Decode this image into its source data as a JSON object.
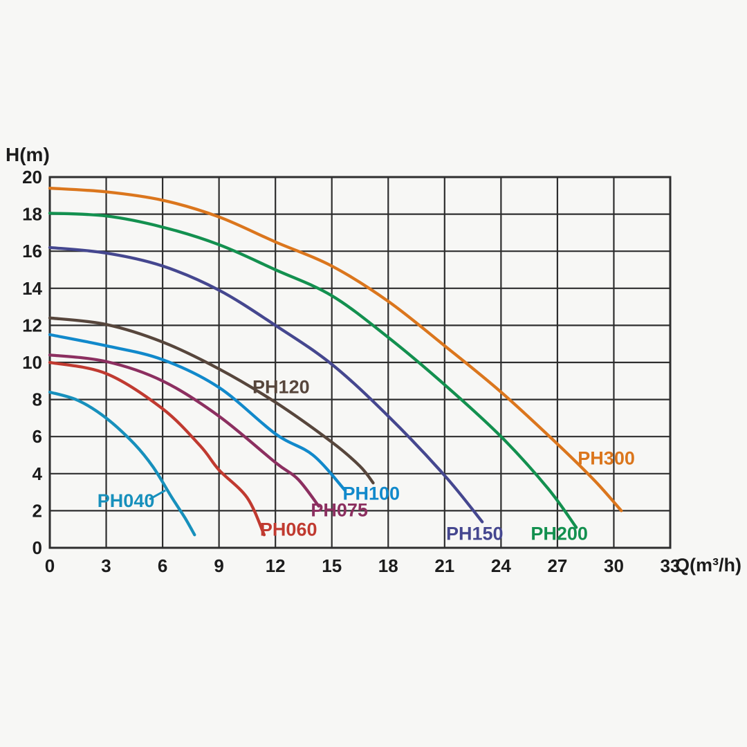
{
  "page": {
    "background": "#f7f7f5",
    "text_color": "#1c1c1c"
  },
  "chart_data": {
    "type": "line",
    "title": "",
    "xlabel": "Q(m³/h)",
    "ylabel": "H(m)",
    "xlim": [
      0,
      33
    ],
    "ylim": [
      0,
      20
    ],
    "x_ticks": [
      0,
      3,
      6,
      9,
      12,
      15,
      18,
      21,
      24,
      27,
      30,
      33
    ],
    "y_ticks": [
      0,
      2,
      4,
      6,
      8,
      10,
      12,
      14,
      16,
      18,
      20
    ],
    "grid": true,
    "grid_color": "#2e2e2e",
    "axis_color": "#2e2e2e",
    "tick_label_color": "#1c1c1c",
    "legend_position": "inline-labels",
    "series": [
      {
        "name": "PH040",
        "color": "#1790bc",
        "points": [
          [
            0,
            8.4
          ],
          [
            1.5,
            7.95
          ],
          [
            3,
            7.0
          ],
          [
            4.5,
            5.6
          ],
          [
            5.5,
            4.35
          ],
          [
            6.5,
            2.7
          ],
          [
            7.2,
            1.6
          ],
          [
            7.7,
            0.7
          ]
        ],
        "label": {
          "x": 4.05,
          "y": 2.55
        },
        "leader": {
          "x1": 5.3,
          "y1": 2.62,
          "x2": 6.15,
          "y2": 3.1
        }
      },
      {
        "name": "PH060",
        "color": "#c03a30",
        "points": [
          [
            0,
            10.0
          ],
          [
            3,
            9.4
          ],
          [
            6,
            7.5
          ],
          [
            8,
            5.5
          ],
          [
            9,
            4.2
          ],
          [
            10.5,
            2.7
          ],
          [
            11.4,
            0.7
          ]
        ],
        "label": {
          "x": 12.7,
          "y": 1.0
        }
      },
      {
        "name": "PH075",
        "color": "#8c2f60",
        "points": [
          [
            0,
            10.4
          ],
          [
            3,
            10.05
          ],
          [
            6,
            9.0
          ],
          [
            9,
            7.1
          ],
          [
            12,
            4.6
          ],
          [
            13.2,
            3.7
          ],
          [
            14.3,
            2.25
          ]
        ],
        "label": {
          "x": 15.4,
          "y": 2.05
        }
      },
      {
        "name": "PH100",
        "color": "#1189cb",
        "points": [
          [
            0,
            11.5
          ],
          [
            3,
            10.9
          ],
          [
            6,
            10.15
          ],
          [
            9,
            8.65
          ],
          [
            12,
            6.15
          ],
          [
            14,
            5.0
          ],
          [
            15.7,
            3.1
          ]
        ],
        "label": {
          "x": 17.1,
          "y": 2.95
        }
      },
      {
        "name": "PH120",
        "color": "#57463c",
        "points": [
          [
            0,
            12.4
          ],
          [
            3,
            12.05
          ],
          [
            6,
            11.1
          ],
          [
            9,
            9.65
          ],
          [
            12,
            7.85
          ],
          [
            15,
            5.7
          ],
          [
            16.5,
            4.4
          ],
          [
            17.2,
            3.5
          ]
        ],
        "label": {
          "x": 12.3,
          "y": 8.7
        }
      },
      {
        "name": "PH150",
        "color": "#45478f",
        "points": [
          [
            0,
            16.2
          ],
          [
            3,
            15.9
          ],
          [
            6,
            15.2
          ],
          [
            9,
            13.9
          ],
          [
            12,
            12.0
          ],
          [
            15,
            9.9
          ],
          [
            18,
            7.1
          ],
          [
            21,
            3.9
          ],
          [
            23,
            1.4
          ]
        ],
        "label": {
          "x": 22.6,
          "y": 0.78
        }
      },
      {
        "name": "PH200",
        "color": "#13904f",
        "points": [
          [
            0,
            18.05
          ],
          [
            3,
            17.9
          ],
          [
            6,
            17.3
          ],
          [
            9,
            16.35
          ],
          [
            12,
            15.0
          ],
          [
            15,
            13.6
          ],
          [
            18,
            11.35
          ],
          [
            21,
            8.8
          ],
          [
            24,
            6.0
          ],
          [
            26.5,
            3.2
          ],
          [
            28,
            1.1
          ]
        ],
        "label": {
          "x": 27.1,
          "y": 0.78
        }
      },
      {
        "name": "PH300",
        "color": "#db761d",
        "points": [
          [
            0,
            19.4
          ],
          [
            3,
            19.2
          ],
          [
            6,
            18.75
          ],
          [
            9,
            17.85
          ],
          [
            12,
            16.5
          ],
          [
            15,
            15.2
          ],
          [
            18,
            13.3
          ],
          [
            21,
            10.9
          ],
          [
            24,
            8.4
          ],
          [
            27,
            5.6
          ],
          [
            29,
            3.6
          ],
          [
            30.4,
            2.0
          ]
        ],
        "label": {
          "x": 29.6,
          "y": 4.85
        }
      }
    ]
  }
}
